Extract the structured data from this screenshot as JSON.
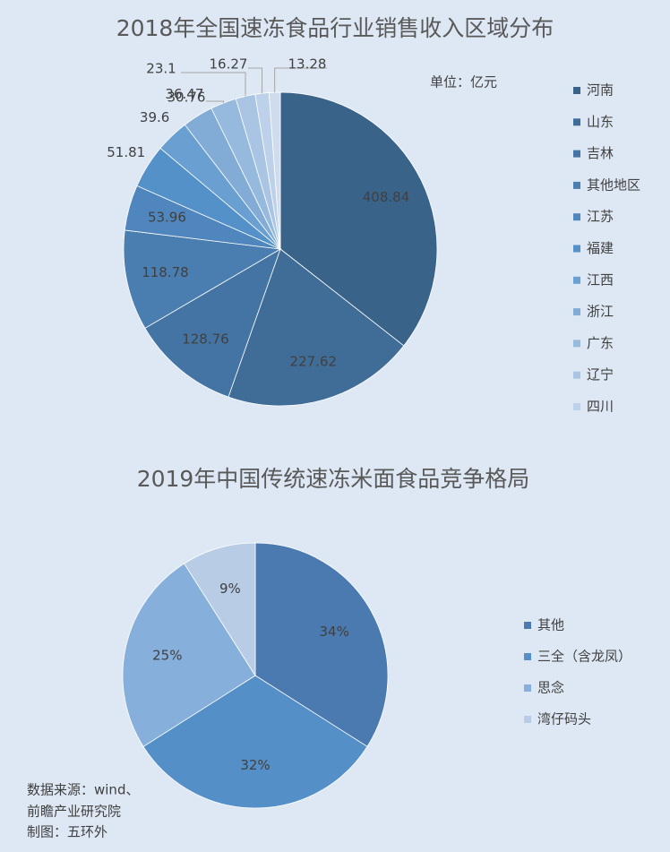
{
  "chart_data": [
    {
      "type": "pie",
      "title": "2018年全国速冻食品行业销售收入区域分布",
      "annotation": "单位：亿元",
      "categories": [
        "河南",
        "山东",
        "吉林",
        "其他地区",
        "江苏",
        "福建",
        "江西",
        "浙江",
        "广东",
        "辽宁",
        "四川",
        null
      ],
      "values": [
        408.84,
        227.62,
        128.76,
        118.78,
        53.96,
        51.81,
        39.6,
        36.47,
        30.76,
        23.1,
        16.27,
        13.28
      ],
      "colors": [
        "#3a6389",
        "#3f6d98",
        "#4374a3",
        "#4a7db0",
        "#4f86bd",
        "#5591c9",
        "#6a9fd2",
        "#82acd6",
        "#96badd",
        "#a9c5e3",
        "#bdd2ea",
        "#cfdcee"
      ]
    },
    {
      "type": "pie",
      "title": "2019年中国传统速冻米面食品竞争格局",
      "categories": [
        "其他",
        "三全（含龙凤）",
        "思念",
        "湾仔码头"
      ],
      "values": [
        34,
        32,
        25,
        9
      ],
      "value_labels": [
        "34%",
        "32%",
        "25%",
        "9%"
      ],
      "colors": [
        "#4a7aaf",
        "#558fc8",
        "#86afdc",
        "#b8cce6"
      ]
    }
  ],
  "source": [
    "数据来源：wind、",
    "前瞻产业研究院",
    "制图：五环外"
  ]
}
